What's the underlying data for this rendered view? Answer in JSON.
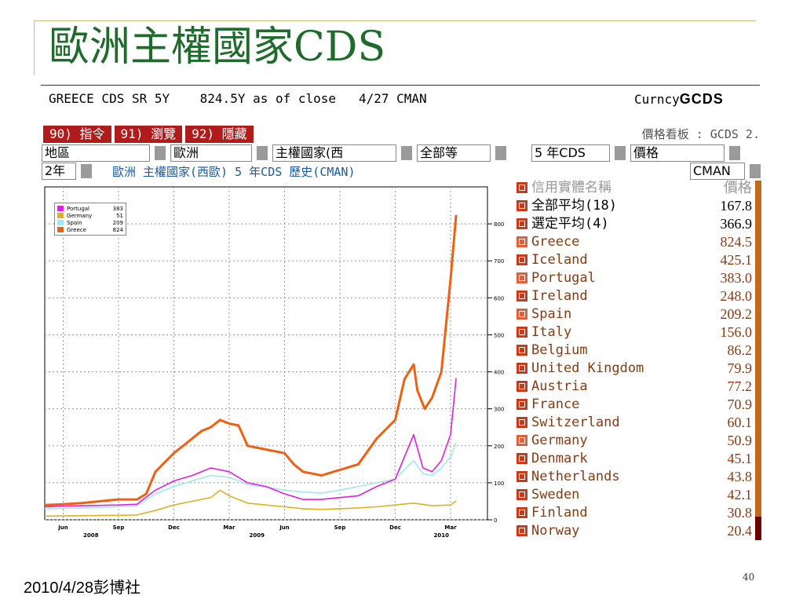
{
  "slide": {
    "title": "歐洲主權國家CDS",
    "footer": "2010/4/28彭博社",
    "page_number": "40"
  },
  "bloomberg": {
    "security": "GREECE CDS SR 5Y",
    "quote": "824.5Y as of close",
    "date_source": "4/27 CMAN",
    "market": "Curncy",
    "function": "GCDS",
    "tabs": [
      "90) 指令",
      "91) 瀏覽",
      "92) 隱藏"
    ],
    "panel_title": "價格看板 : GCDS 2.",
    "filters": {
      "region_label": "地區",
      "region_value": "歐洲",
      "type_value": "主權國家(西",
      "all_value": "全部等",
      "tenor_value": "5 年CDS",
      "price_value": "價格"
    },
    "period": "2年",
    "chart_subtitle": "歐洲  主權國家(西歐) 5 年CDS 歷史(CMAN)",
    "source": "CMAN"
  },
  "table": {
    "header": {
      "name": "信用實體名稱",
      "value": "價格"
    },
    "summary": [
      {
        "name": "全部平均(18)",
        "value": "167.8"
      },
      {
        "name": "選定平均(4)",
        "value": "366.9"
      }
    ],
    "rows": [
      {
        "name": "Greece",
        "value": "824.5",
        "selected": true
      },
      {
        "name": "Iceland",
        "value": "425.1",
        "selected": false
      },
      {
        "name": "Portugal",
        "value": "383.0",
        "selected": true
      },
      {
        "name": "Ireland",
        "value": "248.0",
        "selected": false
      },
      {
        "name": "Spain",
        "value": "209.2",
        "selected": true
      },
      {
        "name": "Italy",
        "value": "156.0",
        "selected": false
      },
      {
        "name": "Belgium",
        "value": "86.2",
        "selected": false
      },
      {
        "name": "United Kingdom",
        "value": "79.9",
        "selected": false
      },
      {
        "name": "Austria",
        "value": "77.2",
        "selected": false
      },
      {
        "name": "France",
        "value": "70.9",
        "selected": false
      },
      {
        "name": "Switzerland",
        "value": "60.1",
        "selected": false
      },
      {
        "name": "Germany",
        "value": "50.9",
        "selected": true
      },
      {
        "name": "Denmark",
        "value": "45.1",
        "selected": false
      },
      {
        "name": "Netherlands",
        "value": "43.8",
        "selected": false
      },
      {
        "name": "Sweden",
        "value": "42.1",
        "selected": false
      },
      {
        "name": "Finland",
        "value": "30.8",
        "selected": false
      },
      {
        "name": "Norway",
        "value": "20.4",
        "selected": false
      }
    ]
  },
  "chart_data": {
    "type": "line",
    "y_ticks": [
      "800",
      "700",
      "600",
      "500",
      "400",
      "300",
      "200",
      "100",
      "0"
    ],
    "ylim": [
      0,
      900
    ],
    "x_months": [
      "Jun",
      "Sep",
      "Dec",
      "Mar",
      "Jun",
      "Sep",
      "Dec",
      "Mar"
    ],
    "x_years": [
      "2008",
      "2009",
      "2010"
    ],
    "legend": [
      {
        "name": "Portugal",
        "value": "383",
        "color": "#e020e0"
      },
      {
        "name": "Germany",
        "value": "51",
        "color": "#e0b020"
      },
      {
        "name": "Spain",
        "value": "209",
        "color": "#a0e8f0"
      },
      {
        "name": "Greece",
        "value": "824",
        "color": "#f06010"
      }
    ],
    "series": [
      {
        "name": "Greece",
        "color": "#f06010",
        "values": [
          [
            0,
            40
          ],
          [
            1,
            42
          ],
          [
            2,
            45
          ],
          [
            3,
            50
          ],
          [
            4,
            55
          ],
          [
            5,
            55
          ],
          [
            5.5,
            70
          ],
          [
            6,
            130
          ],
          [
            7,
            180
          ],
          [
            8,
            220
          ],
          [
            8.5,
            240
          ],
          [
            9,
            250
          ],
          [
            9.5,
            270
          ],
          [
            10,
            260
          ],
          [
            10.5,
            255
          ],
          [
            11,
            200
          ],
          [
            12,
            190
          ],
          [
            13,
            180
          ],
          [
            13.5,
            150
          ],
          [
            14,
            130
          ],
          [
            15,
            120
          ],
          [
            16,
            135
          ],
          [
            17,
            150
          ],
          [
            18,
            220
          ],
          [
            19,
            270
          ],
          [
            19.5,
            380
          ],
          [
            20,
            420
          ],
          [
            20.2,
            350
          ],
          [
            20.6,
            300
          ],
          [
            21,
            330
          ],
          [
            21.5,
            400
          ],
          [
            22,
            650
          ],
          [
            22.3,
            824
          ]
        ]
      },
      {
        "name": "Portugal",
        "color": "#e020e0",
        "values": [
          [
            0,
            35
          ],
          [
            2,
            38
          ],
          [
            4,
            40
          ],
          [
            5,
            42
          ],
          [
            6,
            80
          ],
          [
            7,
            105
          ],
          [
            8,
            120
          ],
          [
            9,
            140
          ],
          [
            10,
            130
          ],
          [
            11,
            100
          ],
          [
            12,
            90
          ],
          [
            13,
            70
          ],
          [
            14,
            55
          ],
          [
            15,
            55
          ],
          [
            16,
            60
          ],
          [
            17,
            65
          ],
          [
            18,
            90
          ],
          [
            19,
            110
          ],
          [
            20,
            230
          ],
          [
            20.5,
            140
          ],
          [
            21,
            130
          ],
          [
            21.5,
            160
          ],
          [
            22,
            230
          ],
          [
            22.3,
            383
          ]
        ]
      },
      {
        "name": "Spain",
        "color": "#a0e8f0",
        "values": [
          [
            0,
            30
          ],
          [
            2,
            32
          ],
          [
            4,
            35
          ],
          [
            5,
            38
          ],
          [
            6,
            70
          ],
          [
            7,
            90
          ],
          [
            8,
            105
          ],
          [
            9,
            120
          ],
          [
            10,
            115
          ],
          [
            11,
            95
          ],
          [
            12,
            88
          ],
          [
            13,
            80
          ],
          [
            14,
            75
          ],
          [
            15,
            72
          ],
          [
            16,
            80
          ],
          [
            17,
            90
          ],
          [
            18,
            100
          ],
          [
            19,
            110
          ],
          [
            20,
            160
          ],
          [
            20.5,
            125
          ],
          [
            21,
            120
          ],
          [
            21.5,
            140
          ],
          [
            22,
            170
          ],
          [
            22.3,
            209
          ]
        ]
      },
      {
        "name": "Germany",
        "color": "#e0b020",
        "values": [
          [
            0,
            10
          ],
          [
            2,
            11
          ],
          [
            4,
            12
          ],
          [
            5,
            13
          ],
          [
            6,
            25
          ],
          [
            7,
            40
          ],
          [
            8,
            50
          ],
          [
            9,
            60
          ],
          [
            9.5,
            80
          ],
          [
            10,
            65
          ],
          [
            11,
            45
          ],
          [
            12,
            40
          ],
          [
            13,
            35
          ],
          [
            14,
            30
          ],
          [
            15,
            28
          ],
          [
            16,
            30
          ],
          [
            17,
            32
          ],
          [
            18,
            35
          ],
          [
            19,
            40
          ],
          [
            20,
            45
          ],
          [
            21,
            38
          ],
          [
            22,
            40
          ],
          [
            22.3,
            51
          ]
        ]
      }
    ]
  }
}
